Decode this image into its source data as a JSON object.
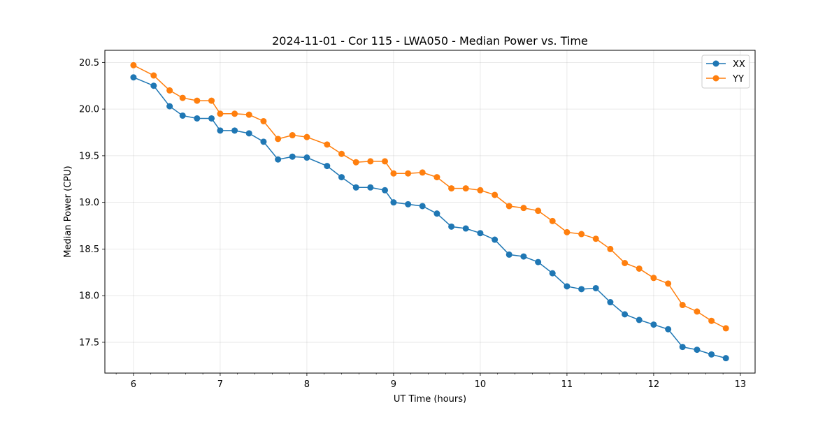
{
  "chart_data": {
    "type": "line",
    "title": "2024-11-01 - Cor 115 - LWA050 - Median Power vs. Time",
    "xlabel": "UT Time (hours)",
    "ylabel": "Median Power (CPU)",
    "xlim": [
      5.67,
      13.17
    ],
    "ylim": [
      17.17,
      20.63
    ],
    "xticks": [
      6,
      7,
      8,
      9,
      10,
      11,
      12,
      13
    ],
    "xtick_labels": [
      "6",
      "7",
      "8",
      "9",
      "10",
      "11",
      "12",
      "13"
    ],
    "yticks": [
      17.5,
      18.0,
      18.5,
      19.0,
      19.5,
      20.0,
      20.5
    ],
    "ytick_labels": [
      "17.5",
      "18.0",
      "18.5",
      "19.0",
      "19.5",
      "20.0",
      "20.5"
    ],
    "grid": true,
    "legend_position": "top-right",
    "x": [
      6.0,
      6.233,
      6.417,
      6.567,
      6.733,
      6.9,
      7.0,
      7.167,
      7.333,
      7.5,
      7.667,
      7.833,
      8.0,
      8.233,
      8.4,
      8.567,
      8.733,
      8.9,
      9.0,
      9.167,
      9.333,
      9.5,
      9.667,
      9.833,
      10.0,
      10.167,
      10.333,
      10.5,
      10.667,
      10.833,
      11.0,
      11.167,
      11.333,
      11.5,
      11.667,
      11.833,
      12.0,
      12.167,
      12.333,
      12.5,
      12.667,
      12.833
    ],
    "series": [
      {
        "name": "XX",
        "color": "#1f77b4",
        "values": [
          20.34,
          20.25,
          20.03,
          19.93,
          19.9,
          19.9,
          19.77,
          19.77,
          19.74,
          19.65,
          19.46,
          19.49,
          19.48,
          19.39,
          19.27,
          19.16,
          19.16,
          19.13,
          19.0,
          18.98,
          18.96,
          18.88,
          18.74,
          18.72,
          18.67,
          18.6,
          18.44,
          18.42,
          18.36,
          18.24,
          18.1,
          18.07,
          18.08,
          17.93,
          17.8,
          17.74,
          17.69,
          17.64,
          17.45,
          17.42,
          17.37,
          17.33
        ]
      },
      {
        "name": "YY",
        "color": "#ff7f0e",
        "values": [
          20.47,
          20.36,
          20.2,
          20.12,
          20.09,
          20.09,
          19.95,
          19.95,
          19.94,
          19.87,
          19.68,
          19.72,
          19.7,
          19.62,
          19.52,
          19.43,
          19.44,
          19.44,
          19.31,
          19.31,
          19.32,
          19.27,
          19.15,
          19.15,
          19.13,
          19.08,
          18.96,
          18.94,
          18.91,
          18.8,
          18.68,
          18.66,
          18.61,
          18.5,
          18.35,
          18.29,
          18.19,
          18.13,
          17.9,
          17.83,
          17.73,
          17.65
        ]
      }
    ]
  }
}
